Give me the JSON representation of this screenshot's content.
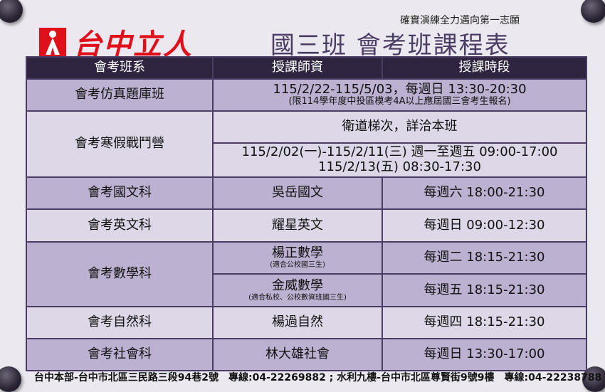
{
  "logo": {
    "name": "台中立人"
  },
  "slogan": "確實演練全力邁向第一志願",
  "title": "國三班 會考班課程表",
  "table": {
    "headers": [
      "會考班系",
      "授課師資",
      "授課時段"
    ],
    "rows": [
      {
        "course": "會考仿真題庫班",
        "merged": "115/2/22-115/5/03，每週日 13:30-20:30",
        "note": "(限114學年度中投區模考4A以上應屆國三會考生報名)"
      },
      {
        "course": "會考寒假戰鬥營",
        "merged": "衛道梯次，詳洽本班",
        "schedule": "115/2/02(一)-115/2/11(三) 週一至週五 09:00-17:00",
        "schedule2": "115/2/13(五) 08:30-17:30"
      },
      {
        "course": "會考國文科",
        "teacher": "吳岳國文",
        "time": "每週六 18:00-21:30"
      },
      {
        "course": "會考英文科",
        "teacher": "耀星英文",
        "time": "每週日 09:00-12:30"
      },
      {
        "course": "會考數學科",
        "teacher": "楊正數學",
        "teacher_note": "(適合公校國三生)",
        "time": "每週二 18:15-21:30",
        "teacher2": "金威數學",
        "teacher2_note": "(適合私校、公校數資班國三生)",
        "time2": "每週五 18:15-21:30"
      },
      {
        "course": "會考自然科",
        "teacher": "楊過自然",
        "time": "每週四 18:15-21:30"
      },
      {
        "course": "會考社會科",
        "teacher": "林大雄社會",
        "time": "每週日 13:30-17:00"
      }
    ]
  },
  "footer": "台中本部-台中市北區三民路三段94巷2號　專線:04-22269882 ; 水利九樓-台中市北區尊賢街9號9樓　專線:04-22238788"
}
